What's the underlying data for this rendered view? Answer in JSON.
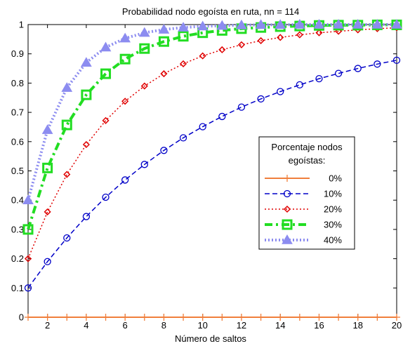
{
  "chart_data": {
    "type": "line",
    "title": "Probabilidad nodo egoísta en ruta, nn = 114",
    "xlabel": "Número de saltos",
    "ylabel": "",
    "xlim": [
      1,
      20
    ],
    "ylim": [
      0,
      1
    ],
    "x_ticks": [
      2,
      4,
      6,
      8,
      10,
      12,
      14,
      16,
      18,
      20
    ],
    "y_ticks": [
      0,
      0.1,
      0.2,
      0.3,
      0.4,
      0.5,
      0.6,
      0.7,
      0.8,
      0.9,
      1
    ],
    "y_tick_labels": [
      "0",
      "0.1",
      "0.2",
      "0.3",
      "0.4",
      "0.5",
      "0.6",
      "0.7",
      "0.8",
      "0.9",
      "1"
    ],
    "grid": false,
    "legend": {
      "title_lines": [
        "Porcentaje nodos",
        "egoístas:"
      ],
      "placement": "center-right"
    },
    "x": [
      1,
      2,
      3,
      4,
      5,
      6,
      7,
      8,
      9,
      10,
      11,
      12,
      13,
      14,
      15,
      16,
      17,
      18,
      19,
      20
    ],
    "series": [
      {
        "name": "0%",
        "color": "#f07f3c",
        "dash": "solid",
        "width": 2,
        "marker": "plus",
        "values": [
          0,
          0,
          0,
          0,
          0,
          0,
          0,
          0,
          0,
          0,
          0,
          0,
          0,
          0,
          0,
          0,
          0,
          0,
          0,
          0
        ]
      },
      {
        "name": "10%",
        "color": "#0000c8",
        "dash": "dashed",
        "width": 1.5,
        "marker": "circle",
        "values": [
          0.1,
          0.19,
          0.271,
          0.344,
          0.41,
          0.469,
          0.522,
          0.57,
          0.613,
          0.651,
          0.686,
          0.718,
          0.746,
          0.771,
          0.794,
          0.815,
          0.833,
          0.85,
          0.865,
          0.878
        ]
      },
      {
        "name": "20%",
        "color": "#e00000",
        "dash": "dotted",
        "width": 1.5,
        "marker": "diamond",
        "values": [
          0.2,
          0.36,
          0.488,
          0.59,
          0.672,
          0.738,
          0.79,
          0.832,
          0.866,
          0.893,
          0.914,
          0.931,
          0.945,
          0.956,
          0.965,
          0.972,
          0.977,
          0.982,
          0.986,
          0.989
        ]
      },
      {
        "name": "30%",
        "color": "#22dd22",
        "dash": "dashdot",
        "width": 4,
        "marker": "square",
        "values": [
          0.3,
          0.51,
          0.657,
          0.76,
          0.832,
          0.882,
          0.918,
          0.942,
          0.96,
          0.972,
          0.98,
          0.986,
          0.99,
          0.993,
          0.995,
          0.997,
          0.998,
          0.998,
          0.999,
          0.999
        ]
      },
      {
        "name": "40%",
        "color": "#8c8cf0",
        "dash": "dotted",
        "width": 4,
        "marker": "triangle",
        "values": [
          0.4,
          0.64,
          0.784,
          0.87,
          0.922,
          0.953,
          0.972,
          0.983,
          0.99,
          0.994,
          0.996,
          0.998,
          0.999,
          0.999,
          1.0,
          1.0,
          1.0,
          1.0,
          1.0,
          1.0
        ]
      }
    ]
  }
}
